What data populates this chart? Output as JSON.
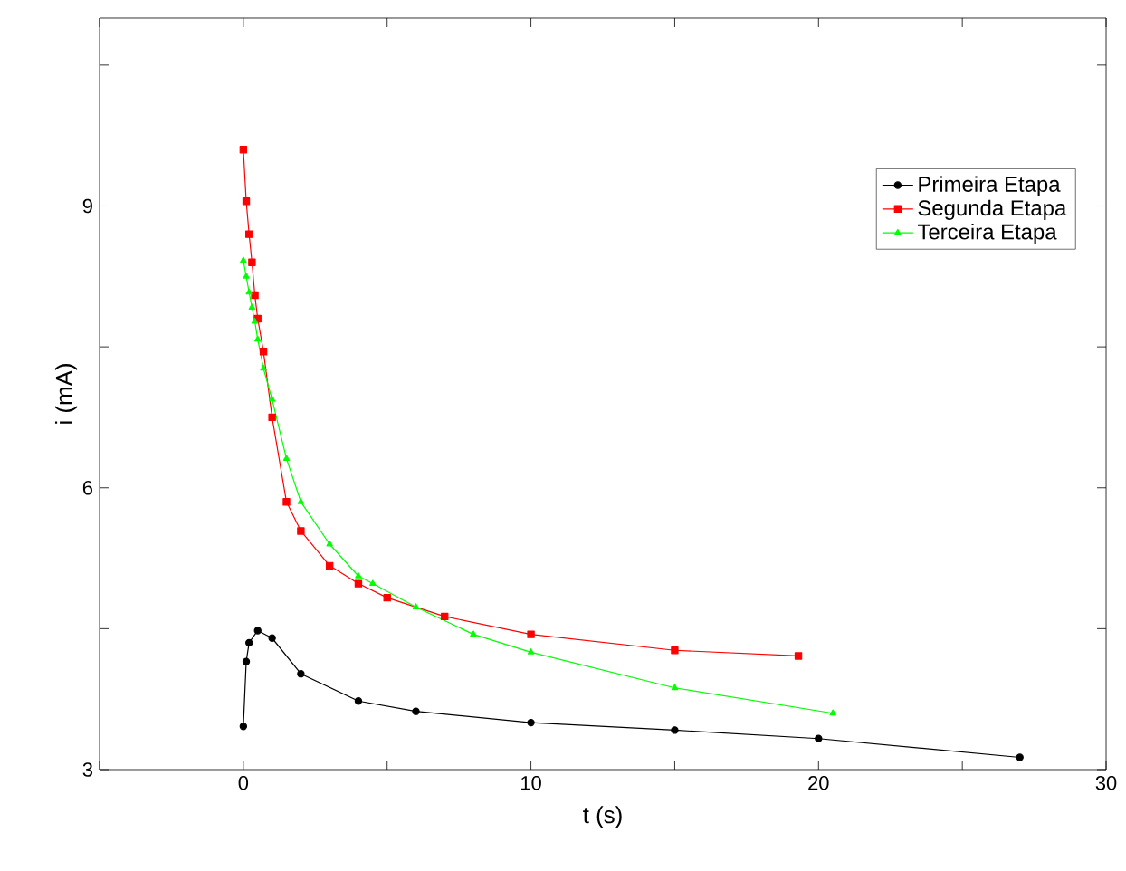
{
  "chart_data": {
    "type": "line",
    "xlabel": "t (s)",
    "ylabel": "i (mA)",
    "xlim": [
      -5,
      30
    ],
    "ylim": [
      3,
      11
    ],
    "xticks": [
      {
        "value": -5,
        "label": null
      },
      0,
      {
        "value": 5,
        "label": null
      },
      10,
      {
        "value": 15,
        "label": null
      },
      20,
      {
        "value": 25,
        "label": null
      },
      30
    ],
    "yticks": [
      3,
      {
        "value": 4.5,
        "label": null
      },
      6,
      {
        "value": 7.5,
        "label": null
      },
      9,
      {
        "value": 10.5,
        "label": null
      }
    ],
    "legend": "top right",
    "grid": false,
    "line_style": "solid",
    "series": [
      {
        "name": "Primeira Etapa",
        "color": "#000000",
        "marker": "circle",
        "x": [
          0,
          0.1,
          0.2,
          0.5,
          1,
          2,
          4,
          6,
          10,
          15,
          20,
          27
        ],
        "values": [
          3.46,
          4.15,
          4.35,
          4.48,
          4.4,
          4.02,
          3.73,
          3.62,
          3.5,
          3.42,
          3.33,
          3.13
        ]
      },
      {
        "name": "Segunda Etapa",
        "color": "#ff0000",
        "marker": "square",
        "x": [
          0,
          0.1,
          0.2,
          0.3,
          0.4,
          0.5,
          0.7,
          1,
          1.5,
          2,
          3,
          4,
          5,
          7,
          10,
          15,
          19.3
        ],
        "values": [
          9.6,
          9.05,
          8.7,
          8.4,
          8.05,
          7.8,
          7.45,
          6.75,
          5.85,
          5.54,
          5.17,
          4.98,
          4.83,
          4.63,
          4.44,
          4.27,
          4.21
        ]
      },
      {
        "name": "Terceira Etapa",
        "color": "#00ff00",
        "marker": "triangle",
        "x": [
          0,
          0.1,
          0.2,
          0.3,
          0.4,
          0.5,
          0.7,
          1,
          1.5,
          2,
          3,
          4,
          4.5,
          6,
          8,
          10,
          15,
          20.5
        ],
        "values": [
          8.42,
          8.25,
          8.08,
          7.92,
          7.77,
          7.58,
          7.27,
          6.94,
          6.31,
          5.85,
          5.4,
          5.06,
          4.98,
          4.73,
          4.44,
          4.25,
          3.87,
          3.6
        ]
      }
    ]
  }
}
